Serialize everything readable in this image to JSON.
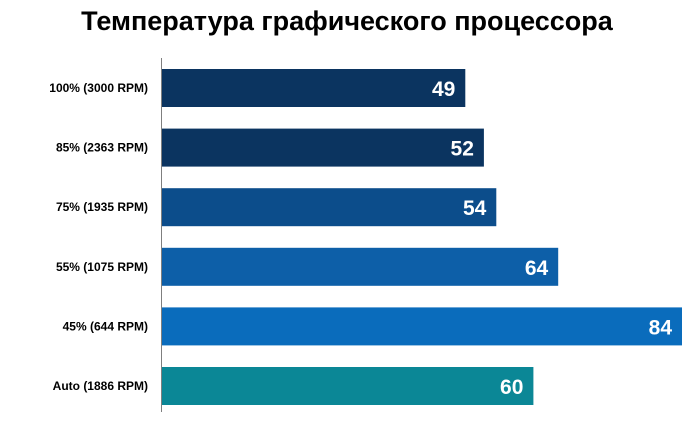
{
  "chart_data": {
    "type": "bar",
    "orientation": "horizontal",
    "title": "Температура графического процессора",
    "categories": [
      "100% (3000 RPM)",
      "85% (2363 RPM)",
      "75% (1935 RPM)",
      "55% (1075 RPM)",
      "45% (644 RPM)",
      "Auto (1886 RPM)"
    ],
    "values": [
      49,
      52,
      54,
      64,
      84,
      60
    ],
    "colors": [
      "#0b3460",
      "#0b3460",
      "#0c4d8b",
      "#0d5fa8",
      "#0a6cbc",
      "#0b8796"
    ],
    "data_labels": true,
    "grid": false,
    "xlim": [
      0,
      84
    ]
  }
}
